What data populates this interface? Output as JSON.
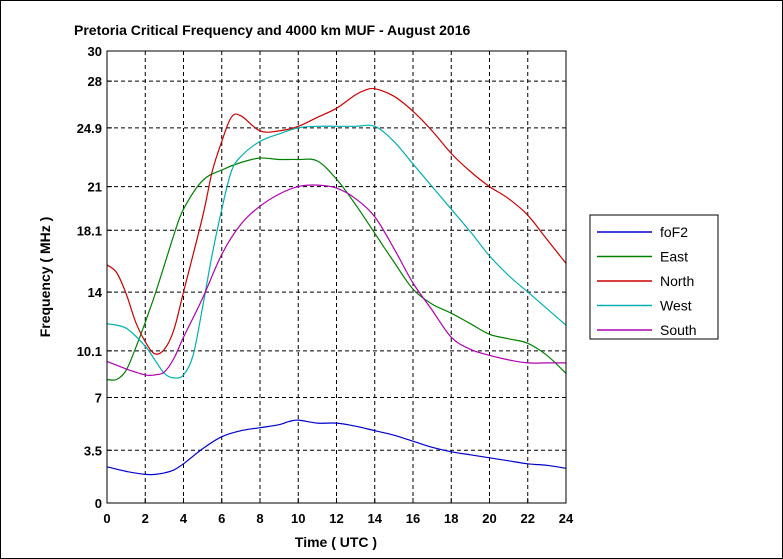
{
  "chart_data": {
    "type": "line",
    "title": "Pretoria Critical Frequency and 4000 km MUF - August 2016",
    "xlabel": "Time ( UTC )",
    "ylabel": "Frequency ( MHz )",
    "xlim": [
      0,
      24
    ],
    "ylim": [
      0,
      30
    ],
    "xticks": [
      0,
      2,
      4,
      6,
      8,
      10,
      12,
      14,
      16,
      18,
      20,
      22,
      24
    ],
    "xtick_labels": [
      "0",
      "2",
      "4",
      "6",
      "8",
      "10",
      "12",
      "14",
      "16",
      "18",
      "20",
      "22",
      "24"
    ],
    "yticks": [
      0,
      3.5,
      7,
      10.1,
      14,
      18.1,
      21,
      24.9,
      28,
      30
    ],
    "ytick_labels": [
      "0",
      "3.5",
      "7",
      "10.1",
      "14",
      "18.1",
      "21",
      "24.9",
      "28",
      "30"
    ],
    "grid": true,
    "legend_position": "right",
    "series": [
      {
        "name": "foF2",
        "color": "#0000cc",
        "x": [
          0,
          1,
          2,
          2.5,
          3,
          3.5,
          4,
          5,
          6,
          7,
          8,
          9,
          9.5,
          10,
          11,
          12,
          13,
          14,
          15,
          16,
          17,
          18,
          19,
          20,
          21,
          22,
          23,
          24
        ],
        "y": [
          2.4,
          2.1,
          1.9,
          1.9,
          2.0,
          2.2,
          2.6,
          3.6,
          4.4,
          4.8,
          5.0,
          5.2,
          5.4,
          5.5,
          5.3,
          5.3,
          5.1,
          4.8,
          4.5,
          4.1,
          3.7,
          3.4,
          3.2,
          3.0,
          2.8,
          2.6,
          2.5,
          2.3
        ]
      },
      {
        "name": "East",
        "color": "#008000",
        "x": [
          0,
          0.5,
          1,
          1.5,
          2,
          2.5,
          3,
          3.5,
          4,
          5,
          6,
          7,
          8,
          9,
          10,
          11,
          12,
          13,
          14,
          15,
          16,
          17,
          18,
          19,
          20,
          21,
          22,
          23,
          24
        ],
        "y": [
          8.2,
          8.2,
          8.8,
          10.3,
          12.0,
          13.8,
          15.8,
          17.8,
          19.5,
          21.4,
          22.1,
          22.6,
          22.9,
          22.8,
          22.8,
          22.7,
          21.5,
          19.8,
          17.9,
          16.0,
          14.2,
          13.2,
          12.6,
          11.9,
          11.2,
          10.9,
          10.6,
          9.8,
          8.6
        ]
      },
      {
        "name": "North",
        "color": "#cc0000",
        "x": [
          0,
          0.5,
          1,
          1.5,
          2,
          2.5,
          3,
          3.5,
          4,
          5,
          5.5,
          6,
          6.5,
          7,
          8,
          9,
          10,
          11,
          12,
          13,
          13.5,
          14,
          15,
          16,
          17,
          18,
          19,
          20,
          21,
          22,
          23,
          24
        ],
        "y": [
          15.8,
          15.3,
          13.9,
          12.0,
          10.7,
          9.9,
          10.2,
          11.5,
          14.0,
          19.0,
          22.0,
          24.0,
          25.6,
          25.7,
          24.7,
          24.7,
          25.0,
          25.6,
          26.2,
          27.1,
          27.4,
          27.5,
          27.0,
          26.0,
          24.7,
          23.2,
          22.0,
          21.0,
          20.2,
          19.1,
          17.5,
          15.9
        ]
      },
      {
        "name": "West",
        "color": "#00b0b0",
        "x": [
          0,
          1,
          2,
          2.5,
          3,
          3.5,
          4,
          4.5,
          5,
          5.5,
          6,
          6.5,
          7,
          8,
          9,
          10,
          11,
          12,
          13,
          14,
          15,
          16,
          17,
          18,
          19,
          20,
          21,
          22,
          23,
          24
        ],
        "y": [
          11.9,
          11.6,
          10.4,
          9.5,
          8.6,
          8.3,
          8.5,
          9.8,
          13.0,
          16.5,
          19.5,
          22.0,
          23.0,
          24.0,
          24.5,
          24.9,
          25.0,
          25.0,
          25.0,
          25.0,
          24.0,
          22.5,
          21.0,
          19.5,
          18.0,
          16.4,
          15.1,
          14.0,
          12.9,
          11.8
        ]
      },
      {
        "name": "South",
        "color": "#b000b0",
        "x": [
          0,
          1,
          2,
          2.5,
          3,
          3.5,
          4,
          5,
          6,
          7,
          8,
          9,
          10,
          11,
          12,
          13,
          14,
          15,
          16,
          17,
          18,
          19,
          20,
          21,
          22,
          23,
          24
        ],
        "y": [
          9.4,
          8.9,
          8.5,
          8.5,
          8.7,
          9.6,
          11.0,
          13.6,
          16.5,
          18.5,
          19.7,
          20.5,
          21.0,
          21.1,
          20.9,
          20.2,
          19.0,
          16.9,
          14.6,
          12.8,
          11.0,
          10.2,
          9.8,
          9.5,
          9.3,
          9.3,
          9.3
        ]
      }
    ]
  }
}
